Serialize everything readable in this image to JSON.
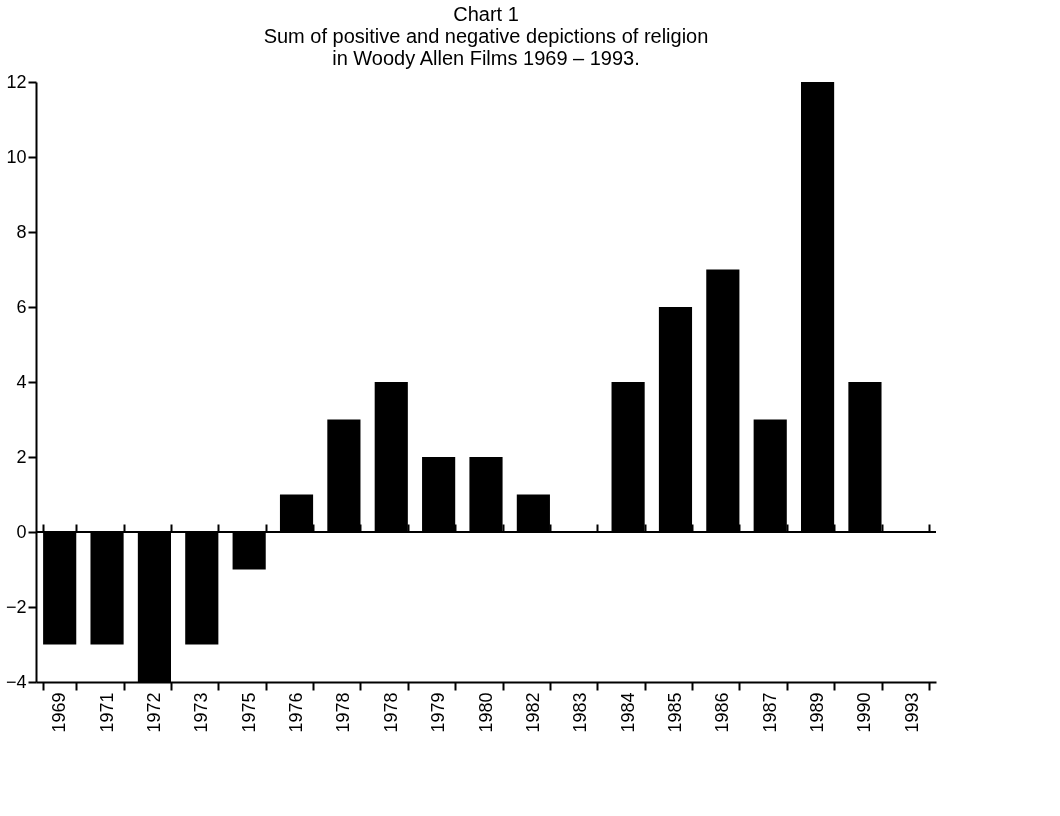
{
  "chart_data": {
    "type": "bar",
    "title": [
      "Chart 1",
      "Sum of positive and negative depictions of religion",
      "in Woody Allen Films 1969 – 1993."
    ],
    "categories": [
      "1969",
      "1971",
      "1972",
      "1973",
      "1975",
      "1976",
      "1978",
      "1978",
      "1979",
      "1980",
      "1982",
      "1983",
      "1984",
      "1985",
      "1986",
      "1987",
      "1989",
      "1990",
      "1993"
    ],
    "values": [
      -3,
      -3,
      -4,
      -3,
      -1,
      1,
      3,
      4,
      2,
      2,
      1,
      0,
      4,
      6,
      7,
      3,
      12,
      4,
      0
    ],
    "color": "#000000",
    "ylim": [
      -4,
      12
    ],
    "yticks": [
      -4,
      -2,
      0,
      2,
      4,
      6,
      8,
      10,
      12
    ],
    "grid": false,
    "ref_lines": [
      {
        "axis": "y",
        "value": 0,
        "color": "#000000"
      }
    ]
  }
}
